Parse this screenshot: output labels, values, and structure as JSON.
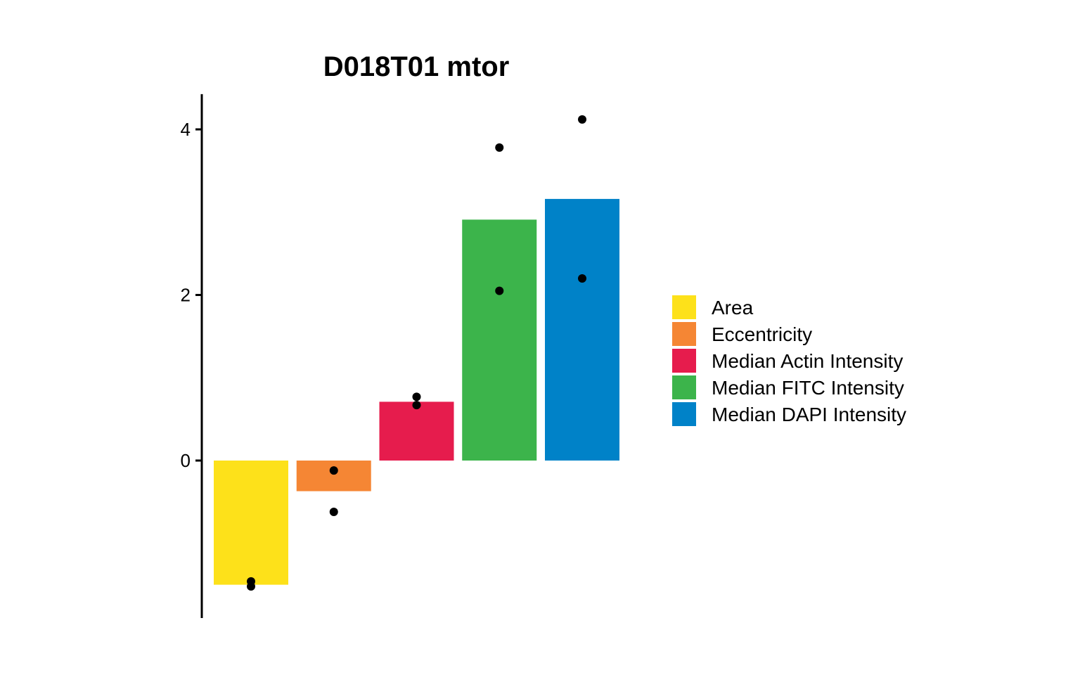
{
  "chart_data": {
    "type": "bar",
    "title": "D018T01 mtor",
    "xlabel": "",
    "ylabel": "",
    "categories": [
      "Area",
      "Eccentricity",
      "Median Actin Intensity",
      "Median FITC Intensity",
      "Median DAPI Intensity"
    ],
    "values": [
      -1.5,
      -0.37,
      0.71,
      2.91,
      3.16
    ],
    "colors": [
      "#FDE11A",
      "#F58634",
      "#E61C4D",
      "#3CB44B",
      "#0082C8"
    ],
    "points": [
      [
        -1.46,
        -1.52
      ],
      [
        -0.12,
        -0.62
      ],
      [
        0.77,
        0.67
      ],
      [
        3.78,
        2.05
      ],
      [
        4.12,
        2.2
      ]
    ],
    "yticks": [
      0,
      2,
      4
    ],
    "ylim": [
      -1.8,
      4.4
    ],
    "grid": false,
    "legend": {
      "position": "right",
      "entries": [
        "Area",
        "Eccentricity",
        "Median Actin Intensity",
        "Median FITC Intensity",
        "Median DAPI Intensity"
      ]
    }
  }
}
